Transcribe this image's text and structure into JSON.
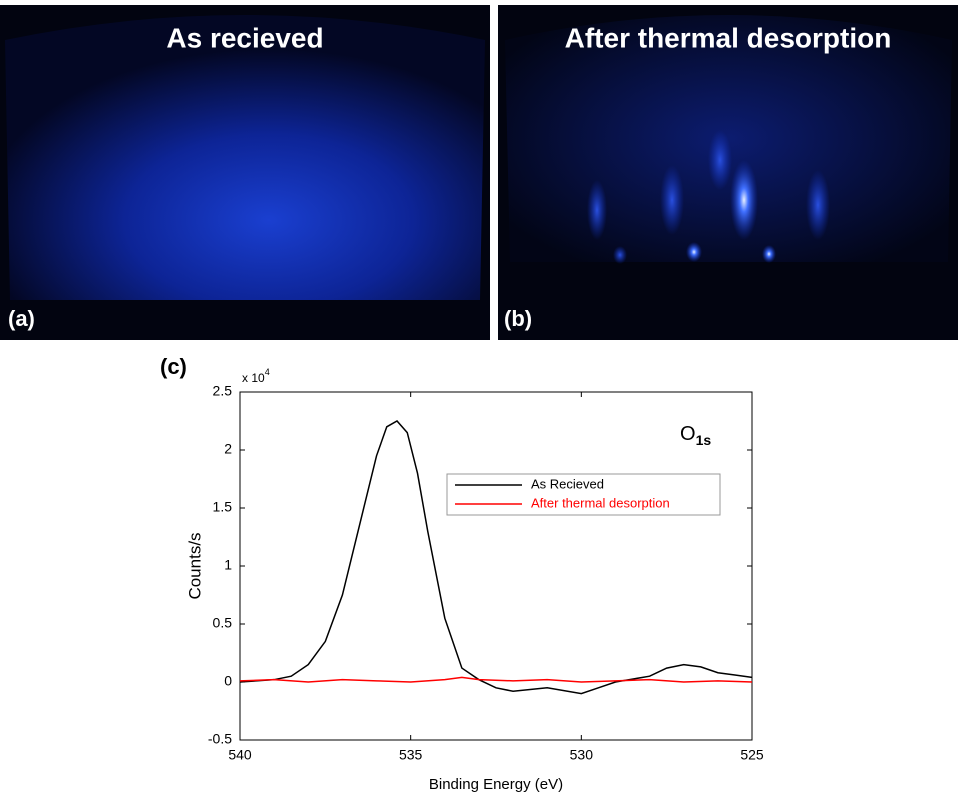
{
  "panels": [
    {
      "title": "As recieved",
      "label": "(a)"
    },
    {
      "title": "After thermal desorption",
      "label": "(b)"
    }
  ],
  "chart_data": {
    "type": "line",
    "label": "(c)",
    "annotation": {
      "base": "O",
      "sub": "1s"
    },
    "y_multiplier": {
      "base": "x 10",
      "exponent": "4"
    },
    "xlabel": "Binding Energy (eV)",
    "ylabel": "Counts/s",
    "xlim": [
      540,
      525
    ],
    "ylim": [
      -0.5,
      2.5
    ],
    "xticks": [
      540,
      535,
      530,
      525
    ],
    "yticks": [
      -0.5,
      0,
      0.5,
      1,
      1.5,
      2,
      2.5
    ],
    "legend": "upper right",
    "series": [
      {
        "name": "As Recieved",
        "color": "#000000",
        "x": [
          540,
          539,
          538.5,
          538,
          537.5,
          537,
          536.5,
          536,
          535.7,
          535.4,
          535.1,
          534.8,
          534.5,
          534,
          533.5,
          533,
          532.5,
          532,
          531,
          530,
          529.5,
          529,
          528,
          527.5,
          527,
          526.5,
          526,
          525.5,
          525
        ],
        "values": [
          0,
          0.02,
          0.05,
          0.15,
          0.35,
          0.75,
          1.35,
          1.95,
          2.2,
          2.25,
          2.15,
          1.8,
          1.3,
          0.55,
          0.12,
          0.02,
          -0.05,
          -0.08,
          -0.05,
          -0.1,
          -0.05,
          0,
          0.05,
          0.12,
          0.15,
          0.13,
          0.08,
          0.06,
          0.04
        ]
      },
      {
        "name": "After thermal desorption",
        "color": "#ff0000",
        "x": [
          540,
          539,
          538,
          537,
          536,
          535,
          534,
          533.5,
          533,
          532,
          531,
          530,
          529,
          528,
          527,
          526,
          525
        ],
        "values": [
          0.01,
          0.02,
          0.0,
          0.02,
          0.01,
          0.0,
          0.02,
          0.04,
          0.02,
          0.01,
          0.02,
          0.0,
          0.01,
          0.02,
          0.0,
          0.01,
          0.0
        ]
      }
    ]
  }
}
